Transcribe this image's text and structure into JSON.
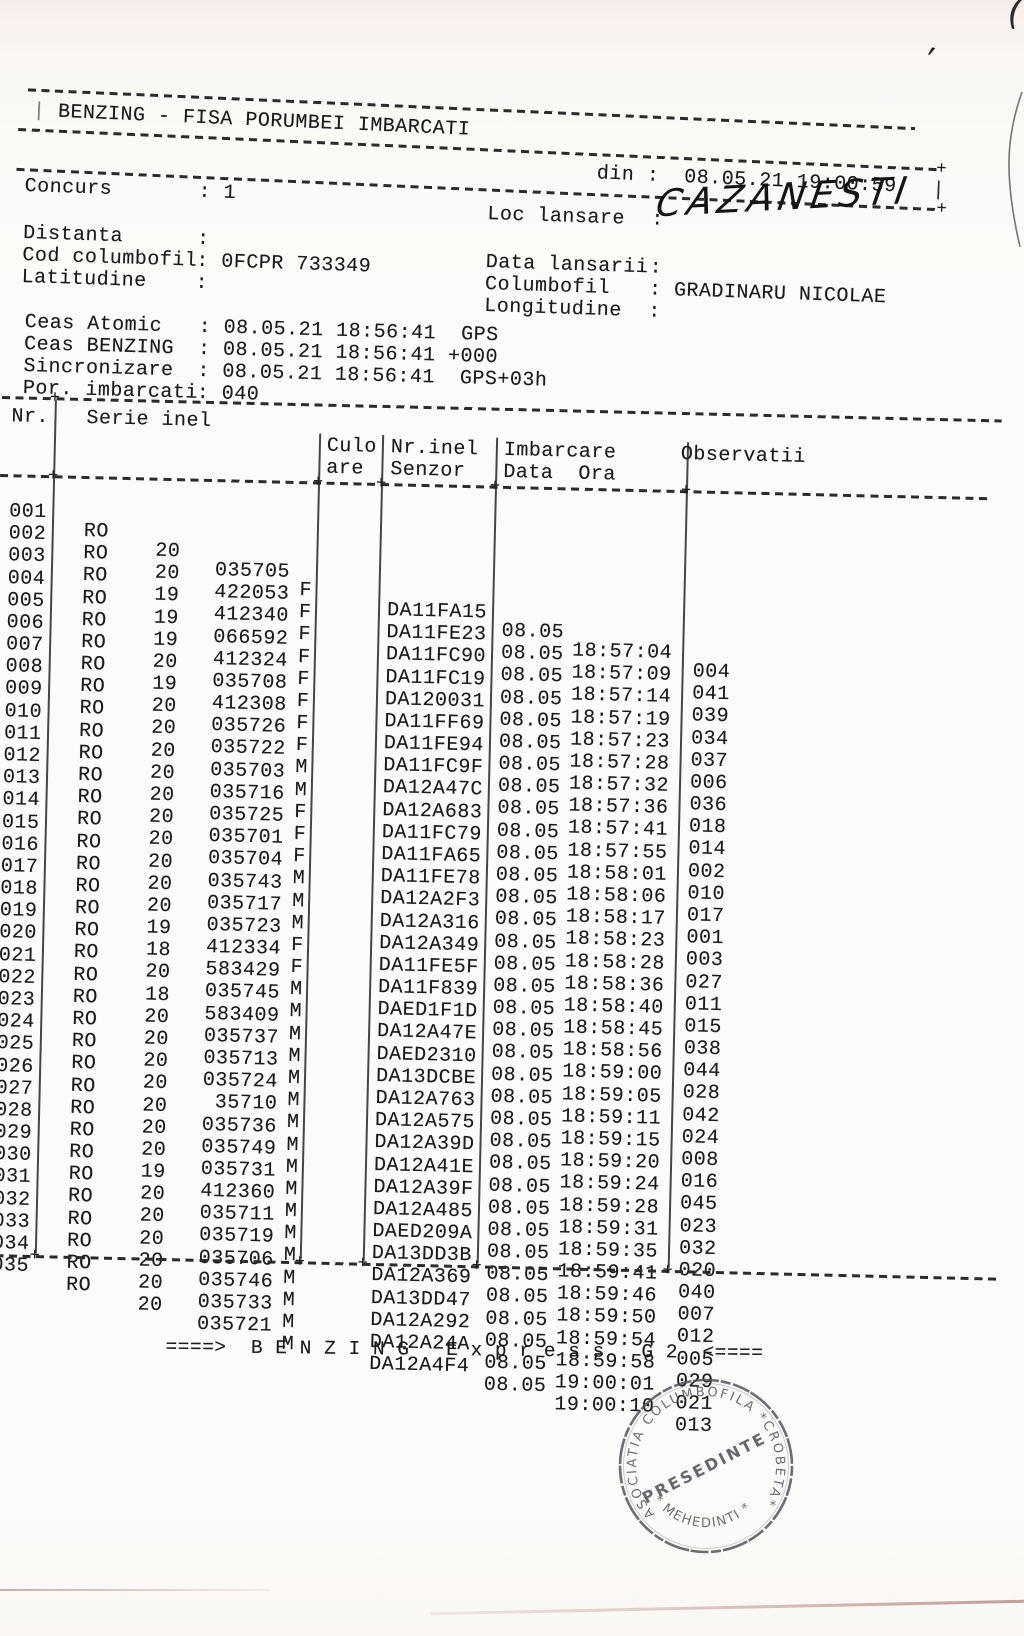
{
  "glyphs": {
    "plus": "+",
    "pipe": "|",
    "corner_mark": "(",
    "tick": "’"
  },
  "header": {
    "title": "BENZING - FISA PORUMBEI IMBARCATI",
    "din_label": "din :",
    "din_value": "08.05.21 19:00:59"
  },
  "meta_left": [
    {
      "label": "Concurs",
      "value": ": 1"
    },
    {
      "label": "Distanta",
      "value": ":"
    },
    {
      "label": "Cod columbofil",
      "value": ": 0FCPR 733349"
    },
    {
      "label": "Latitudine",
      "value": ":"
    }
  ],
  "meta_right": [
    {
      "label": "Loc lansare",
      "value": ":"
    },
    {
      "label": "Data lansarii",
      "value": ":"
    },
    {
      "label": "Columbofil",
      "value": ": GRADINARU NICOLAE"
    },
    {
      "label": "Longitudine",
      "value": ":"
    }
  ],
  "loc_lansare_handwritten": "CAZANESTI",
  "clock": [
    {
      "label": "Ceas Atomic",
      "value": ": 08.05.21 18:56:41  GPS"
    },
    {
      "label": "Ceas BENZING",
      "value": ": 08.05.21 18:56:41 +000"
    },
    {
      "label": "Sincronizare",
      "value": ": 08.05.21 18:56:41  GPS+03h"
    },
    {
      "label": "Por. imbarcati",
      "value": ": 040"
    }
  ],
  "table": {
    "headers": {
      "nr": "Nr.",
      "serie": "Serie inel",
      "culoare_1": "Culo",
      "culoare_2": "are",
      "senzor_1": "Nr.inel",
      "senzor_2": "Senzor",
      "imbarcare_1": "Imbarcare",
      "imbarcare_2": "Data  Ora",
      "observatii": "Observatii"
    },
    "rows": [
      {
        "nr": "001",
        "country": "RO",
        "year": "20",
        "ring": "035705",
        "sex": "F",
        "sensor": "DA11FA15",
        "date": "08.05",
        "time": "18:57:04",
        "obs": "004"
      },
      {
        "nr": "002",
        "country": "RO",
        "year": "20",
        "ring": "422053",
        "sex": "F",
        "sensor": "DA11FE23",
        "date": "08.05",
        "time": "18:57:09",
        "obs": "041"
      },
      {
        "nr": "003",
        "country": "RO",
        "year": "19",
        "ring": "412340",
        "sex": "F",
        "sensor": "DA11FC90",
        "date": "08.05",
        "time": "18:57:14",
        "obs": "039"
      },
      {
        "nr": "004",
        "country": "RO",
        "year": "19",
        "ring": "066592",
        "sex": "F",
        "sensor": "DA11FC19",
        "date": "08.05",
        "time": "18:57:19",
        "obs": "034"
      },
      {
        "nr": "005",
        "country": "RO",
        "year": "19",
        "ring": "412324",
        "sex": "F",
        "sensor": "DA120031",
        "date": "08.05",
        "time": "18:57:23",
        "obs": "037"
      },
      {
        "nr": "006",
        "country": "RO",
        "year": "20",
        "ring": "035708",
        "sex": "F",
        "sensor": "DA11FF69",
        "date": "08.05",
        "time": "18:57:28",
        "obs": "006"
      },
      {
        "nr": "007",
        "country": "RO",
        "year": "19",
        "ring": "412308",
        "sex": "F",
        "sensor": "DA11FE94",
        "date": "08.05",
        "time": "18:57:32",
        "obs": "036"
      },
      {
        "nr": "008",
        "country": "RO",
        "year": "20",
        "ring": "035726",
        "sex": "F",
        "sensor": "DA11FC9F",
        "date": "08.05",
        "time": "18:57:36",
        "obs": "018"
      },
      {
        "nr": "009",
        "country": "RO",
        "year": "20",
        "ring": "035722",
        "sex": "M",
        "sensor": "DA12A47C",
        "date": "08.05",
        "time": "18:57:41",
        "obs": "014"
      },
      {
        "nr": "010",
        "country": "RO",
        "year": "20",
        "ring": "035703",
        "sex": "M",
        "sensor": "DA12A683",
        "date": "08.05",
        "time": "18:57:55",
        "obs": "002"
      },
      {
        "nr": "011",
        "country": "RO",
        "year": "20",
        "ring": "035716",
        "sex": "F",
        "sensor": "DA11FC79",
        "date": "08.05",
        "time": "18:58:01",
        "obs": "010"
      },
      {
        "nr": "012",
        "country": "RO",
        "year": "20",
        "ring": "035725",
        "sex": "F",
        "sensor": "DA11FA65",
        "date": "08.05",
        "time": "18:58:06",
        "obs": "017"
      },
      {
        "nr": "013",
        "country": "RO",
        "year": "20",
        "ring": "035701",
        "sex": "F",
        "sensor": "DA11FE78",
        "date": "08.05",
        "time": "18:58:17",
        "obs": "001"
      },
      {
        "nr": "014",
        "country": "RO",
        "year": "20",
        "ring": "035704",
        "sex": "M",
        "sensor": "DA12A2F3",
        "date": "08.05",
        "time": "18:58:23",
        "obs": "003"
      },
      {
        "nr": "015",
        "country": "RO",
        "year": "20",
        "ring": "035743",
        "sex": "M",
        "sensor": "DA12A316",
        "date": "08.05",
        "time": "18:58:28",
        "obs": "027"
      },
      {
        "nr": "016",
        "country": "RO",
        "year": "20",
        "ring": "035717",
        "sex": "M",
        "sensor": "DA12A349",
        "date": "08.05",
        "time": "18:58:36",
        "obs": "011"
      },
      {
        "nr": "017",
        "country": "RO",
        "year": "20",
        "ring": "035723",
        "sex": "F",
        "sensor": "DA11FE5F",
        "date": "08.05",
        "time": "18:58:40",
        "obs": "015"
      },
      {
        "nr": "018",
        "country": "RO",
        "year": "19",
        "ring": "412334",
        "sex": "F",
        "sensor": "DA11F839",
        "date": "08.05",
        "time": "18:58:45",
        "obs": "038"
      },
      {
        "nr": "019",
        "country": "RO",
        "year": "18",
        "ring": "583429",
        "sex": "M",
        "sensor": "DAED1F1D",
        "date": "08.05",
        "time": "18:58:56",
        "obs": "044"
      },
      {
        "nr": "020",
        "country": "RO",
        "year": "20",
        "ring": "035745",
        "sex": "M",
        "sensor": "DA12A47E",
        "date": "08.05",
        "time": "18:59:00",
        "obs": "028"
      },
      {
        "nr": "021",
        "country": "RO",
        "year": "18",
        "ring": "583409",
        "sex": "M",
        "sensor": "DAED2310",
        "date": "08.05",
        "time": "18:59:05",
        "obs": "042"
      },
      {
        "nr": "022",
        "country": "RO",
        "year": "20",
        "ring": "035737",
        "sex": "M",
        "sensor": "DA13DCBE",
        "date": "08.05",
        "time": "18:59:11",
        "obs": "024"
      },
      {
        "nr": "023",
        "country": "RO",
        "year": "20",
        "ring": "035713",
        "sex": "M",
        "sensor": "DA12A763",
        "date": "08.05",
        "time": "18:59:15",
        "obs": "008"
      },
      {
        "nr": "024",
        "country": "RO",
        "year": "20",
        "ring": "035724",
        "sex": "M",
        "sensor": "DA12A575",
        "date": "08.05",
        "time": "18:59:20",
        "obs": "016"
      },
      {
        "nr": "025",
        "country": "RO",
        "year": "20",
        "ring": "35710",
        "sex": "M",
        "sensor": "DA12A39D",
        "date": "08.05",
        "time": "18:59:24",
        "obs": "045"
      },
      {
        "nr": "026",
        "country": "RO",
        "year": "20",
        "ring": "035736",
        "sex": "M",
        "sensor": "DA12A41E",
        "date": "08.05",
        "time": "18:59:28",
        "obs": "023"
      },
      {
        "nr": "027",
        "country": "RO",
        "year": "20",
        "ring": "035749",
        "sex": "M",
        "sensor": "DA12A39F",
        "date": "08.05",
        "time": "18:59:31",
        "obs": "032"
      },
      {
        "nr": "028",
        "country": "RO",
        "year": "20",
        "ring": "035731",
        "sex": "M",
        "sensor": "DA12A485",
        "date": "08.05",
        "time": "18:59:35",
        "obs": "020"
      },
      {
        "nr": "029",
        "country": "RO",
        "year": "19",
        "ring": "412360",
        "sex": "M",
        "sensor": "DAED209A",
        "date": "08.05",
        "time": "18:59:41",
        "obs": "040"
      },
      {
        "nr": "030",
        "country": "RO",
        "year": "20",
        "ring": "035711",
        "sex": "M",
        "sensor": "DA13DD3B",
        "date": "08.05",
        "time": "18:59:46",
        "obs": "007"
      },
      {
        "nr": "031",
        "country": "RO",
        "year": "20",
        "ring": "035719",
        "sex": "M",
        "sensor": "DA12A369",
        "date": "08.05",
        "time": "18:59:50",
        "obs": "012"
      },
      {
        "nr": "032",
        "country": "RO",
        "year": "20",
        "ring": "035706",
        "sex": "M",
        "sensor": "DA13DD47",
        "date": "08.05",
        "time": "18:59:54",
        "obs": "005"
      },
      {
        "nr": "033",
        "country": "RO",
        "year": "20",
        "ring": "035746",
        "sex": "M",
        "sensor": "DA12A292",
        "date": "08.05",
        "time": "18:59:58",
        "obs": "029"
      },
      {
        "nr": "034",
        "country": "RO",
        "year": "20",
        "ring": "035733",
        "sex": "M",
        "sensor": "DA12A24A",
        "date": "08.05",
        "time": "19:00:01",
        "obs": "021"
      },
      {
        "nr": "035",
        "country": "RO",
        "year": "20",
        "ring": "035721",
        "sex": "M",
        "sensor": "DA12A4F4",
        "date": "08.05",
        "time": "19:00:10",
        "obs": "013"
      }
    ]
  },
  "footer": {
    "text": "====>  B E N Z I N G   E x p r e s s   G 2  <===="
  },
  "stamp": {
    "arc_top": "ASOCIATIA COLUMBOFILA *CROBETA*",
    "arc_bottom": "* MEHEDINTI *",
    "center": "PRESEDINTE"
  }
}
